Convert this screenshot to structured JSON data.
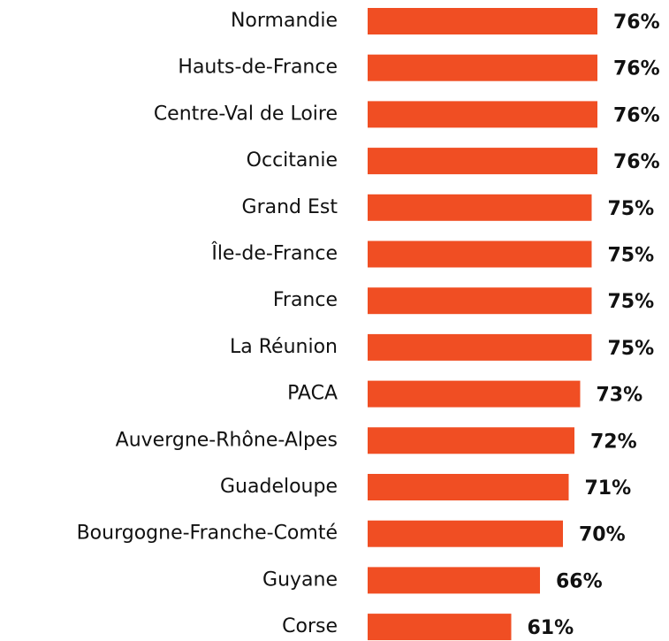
{
  "chart_data": {
    "type": "bar",
    "orientation": "horizontal",
    "categories": [
      "Normandie",
      "Hauts-de-France",
      "Centre-Val de Loire",
      "Occitanie",
      "Grand Est",
      "Île-de-France",
      "France",
      "La Réunion",
      "PACA",
      "Auvergne-Rhône-Alpes",
      "Guadeloupe",
      "Bourgogne-Franche-Comté",
      "Guyane",
      "Corse"
    ],
    "values": [
      76,
      76,
      76,
      76,
      75,
      75,
      75,
      75,
      73,
      72,
      71,
      70,
      66,
      61
    ],
    "value_labels": [
      "76%",
      "76%",
      "76%",
      "76%",
      "75%",
      "75%",
      "75%",
      "75%",
      "73%",
      "72%",
      "71%",
      "70%",
      "66%",
      "61%"
    ],
    "color": "#f04e23",
    "xlim": [
      36,
      80
    ]
  }
}
